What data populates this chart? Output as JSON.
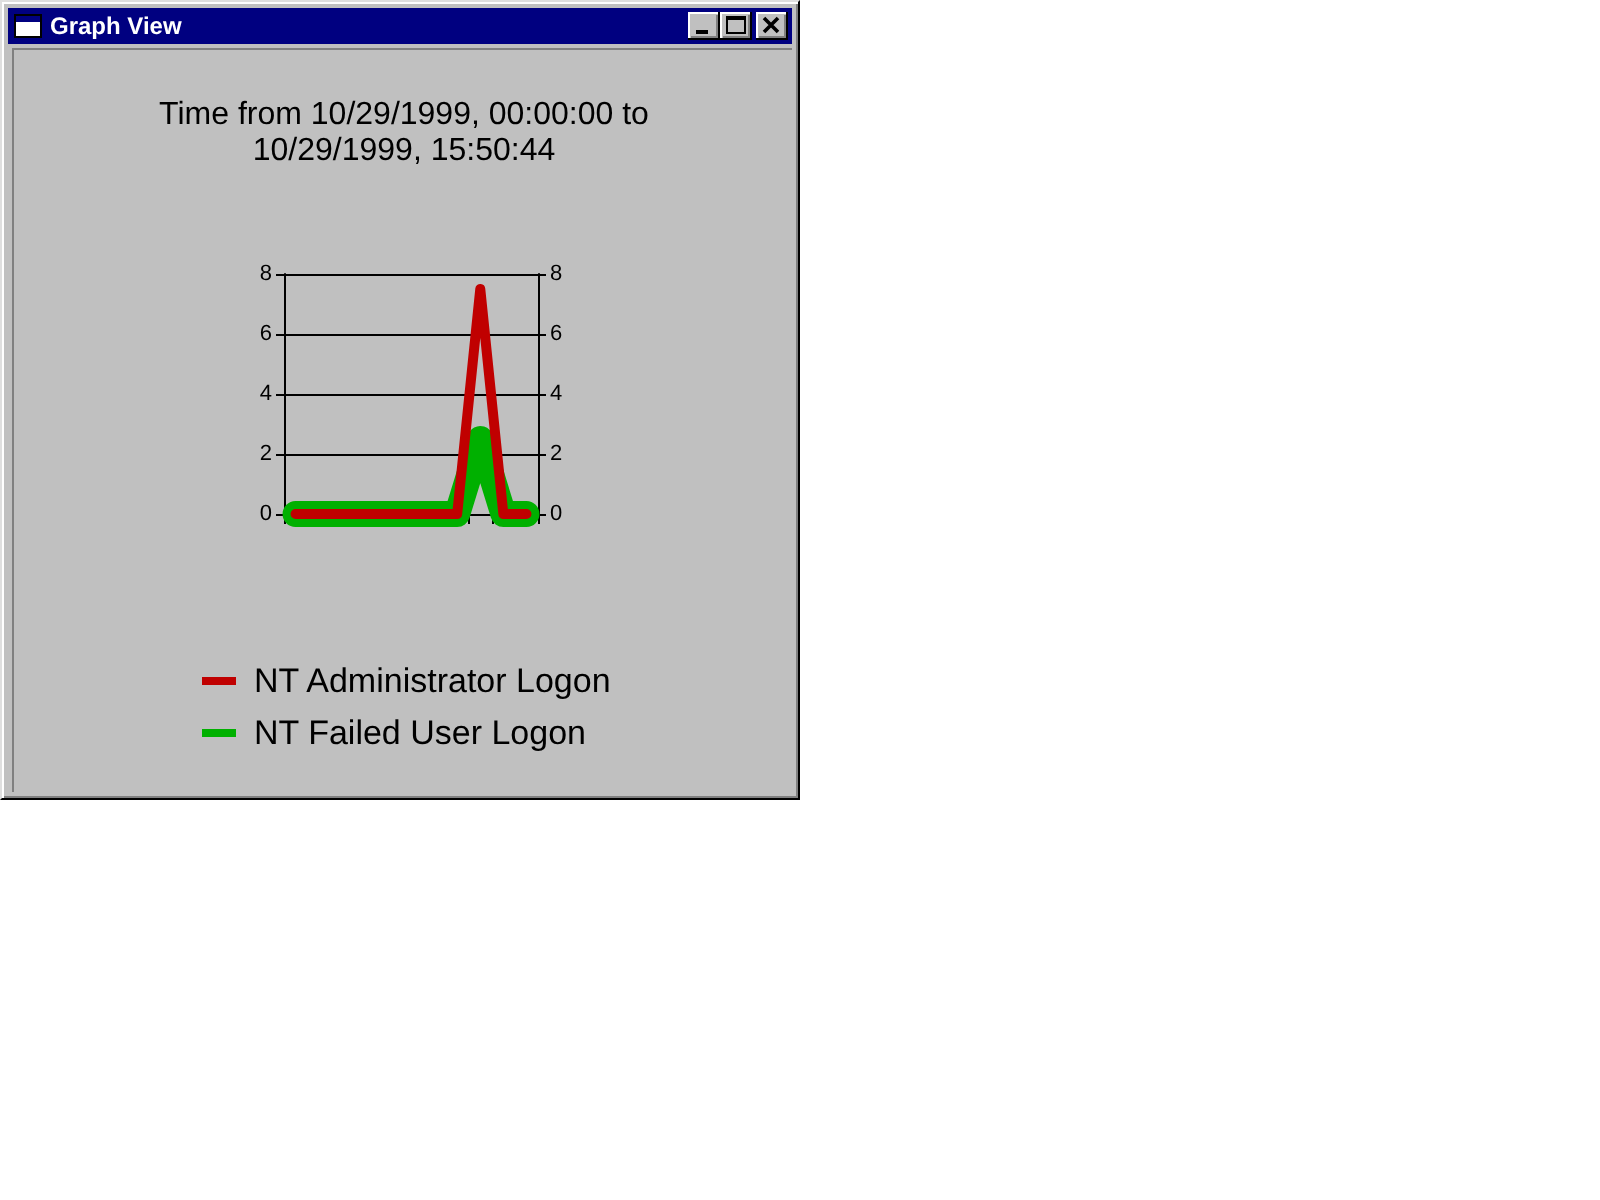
{
  "chart_data": {
    "type": "line",
    "title": "Time from 10/29/1999, 00:00:00 to 10/29/1999, 15:50:44",
    "annotations": [
      "Graph View"
    ],
    "categories": [
      null,
      null,
      null,
      null,
      null,
      null,
      null,
      null,
      null,
      null,
      null
    ],
    "series": [
      {
        "name": "NT Administrator Logon",
        "color": "#c00000",
        "values": [
          0,
          0,
          0,
          0,
          0,
          0,
          0,
          0,
          7.5,
          0,
          0
        ]
      },
      {
        "name": "NT Failed User Logon",
        "color": "#00b000",
        "values": [
          0,
          0,
          0,
          0,
          0,
          0,
          0,
          0,
          2.5,
          0,
          0
        ]
      }
    ],
    "ylim": [
      0,
      8
    ],
    "yticks": [
      0,
      2,
      4,
      6,
      8
    ],
    "y2lim": [
      0,
      8
    ],
    "y2ticks": [
      0,
      2,
      4,
      6,
      8
    ],
    "grid": "y",
    "legend": "bottom",
    "line_style": "solid"
  }
}
